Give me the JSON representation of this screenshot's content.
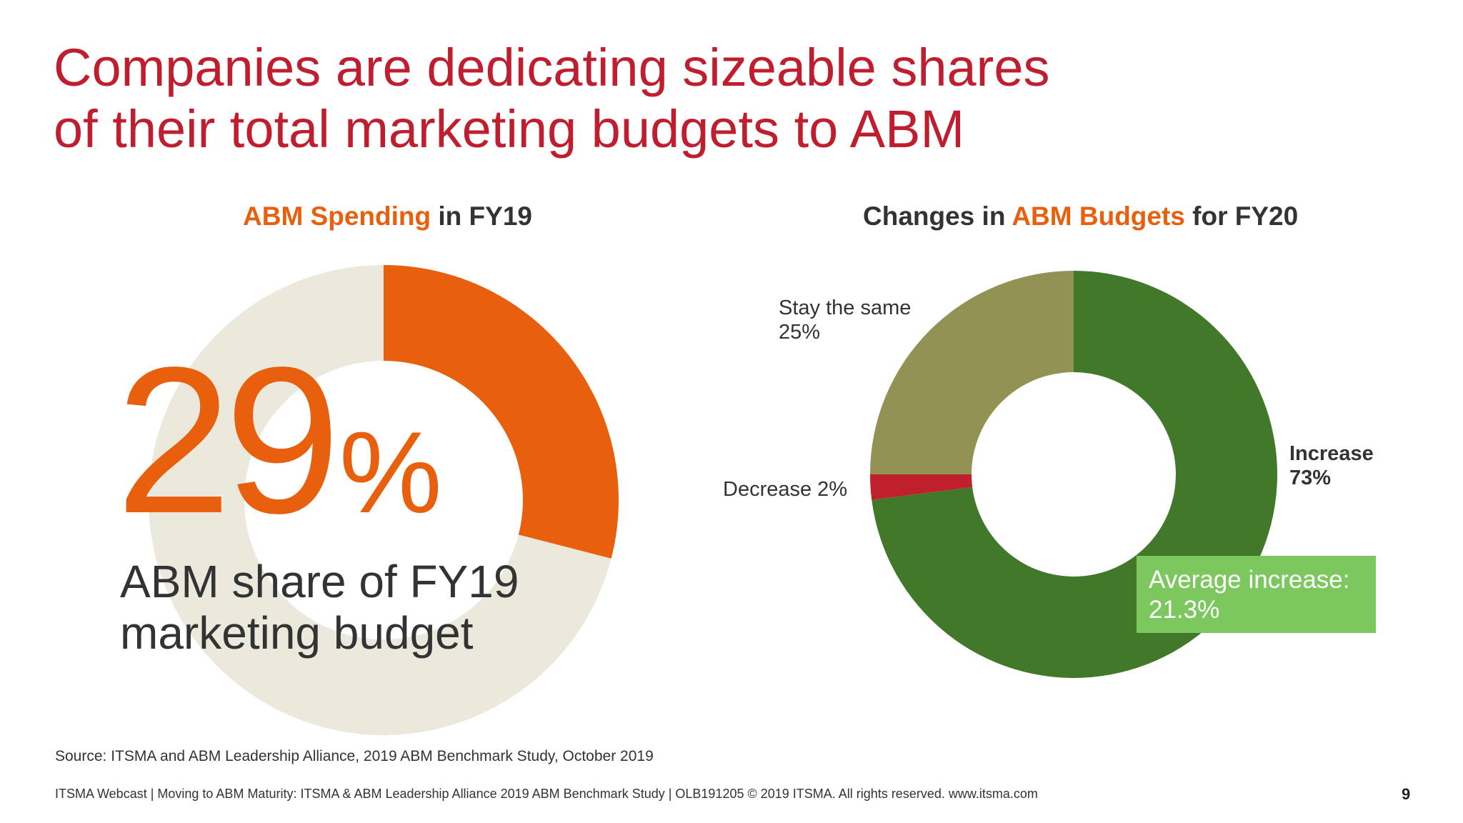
{
  "slide": {
    "title_line1": "Companies are dedicating sizeable shares",
    "title_line2": "of their total marketing budgets to ABM",
    "source": "Source: ITSMA and ABM Leadership Alliance, 2019 ABM Benchmark Study, October 2019",
    "footer": "ITSMA Webcast | Moving to ABM Maturity: ITSMA & ABM Leadership Alliance 2019 ABM Benchmark Study | OLB191205 © 2019 ITSMA. All rights reserved. www.itsma.com",
    "page_number": "9"
  },
  "left_panel": {
    "title_highlight": "ABM Spending",
    "title_rest": " in FY19",
    "big_value": "29",
    "big_unit": "%",
    "caption_line1": "ABM share of FY19",
    "caption_line2": "marketing budget"
  },
  "right_panel": {
    "title_pre": "Changes in ",
    "title_highlight": "ABM Budgets",
    "title_post": " for FY20",
    "label_increase_line1": "Increase",
    "label_increase_line2": "73%",
    "label_same_line1": "Stay the same",
    "label_same_line2": "25%",
    "label_decrease": "Decrease 2%",
    "callout_line1": "Average increase:",
    "callout_line2": "21.3%"
  },
  "colors": {
    "title_red": "#bf1e2e",
    "accent_orange": "#e8600e",
    "donut_rest": "#ebe9dc",
    "increase_green": "#41782a",
    "same_olive": "#929254",
    "decrease_red": "#c0202b",
    "callout_green": "#7cc85f"
  },
  "chart_data": [
    {
      "type": "pie",
      "title": "ABM Spending in FY19",
      "categories": [
        "ABM share of FY19 marketing budget",
        ""
      ],
      "values": [
        29,
        71
      ],
      "colors": [
        "#e8600e",
        "#ebe9dc"
      ]
    },
    {
      "type": "pie",
      "title": "Changes in ABM Budgets for FY20",
      "categories": [
        "Increase",
        "Decrease",
        "Stay the same"
      ],
      "values": [
        73,
        2,
        25
      ],
      "colors": [
        "#41782a",
        "#c0202b",
        "#929254"
      ]
    }
  ]
}
